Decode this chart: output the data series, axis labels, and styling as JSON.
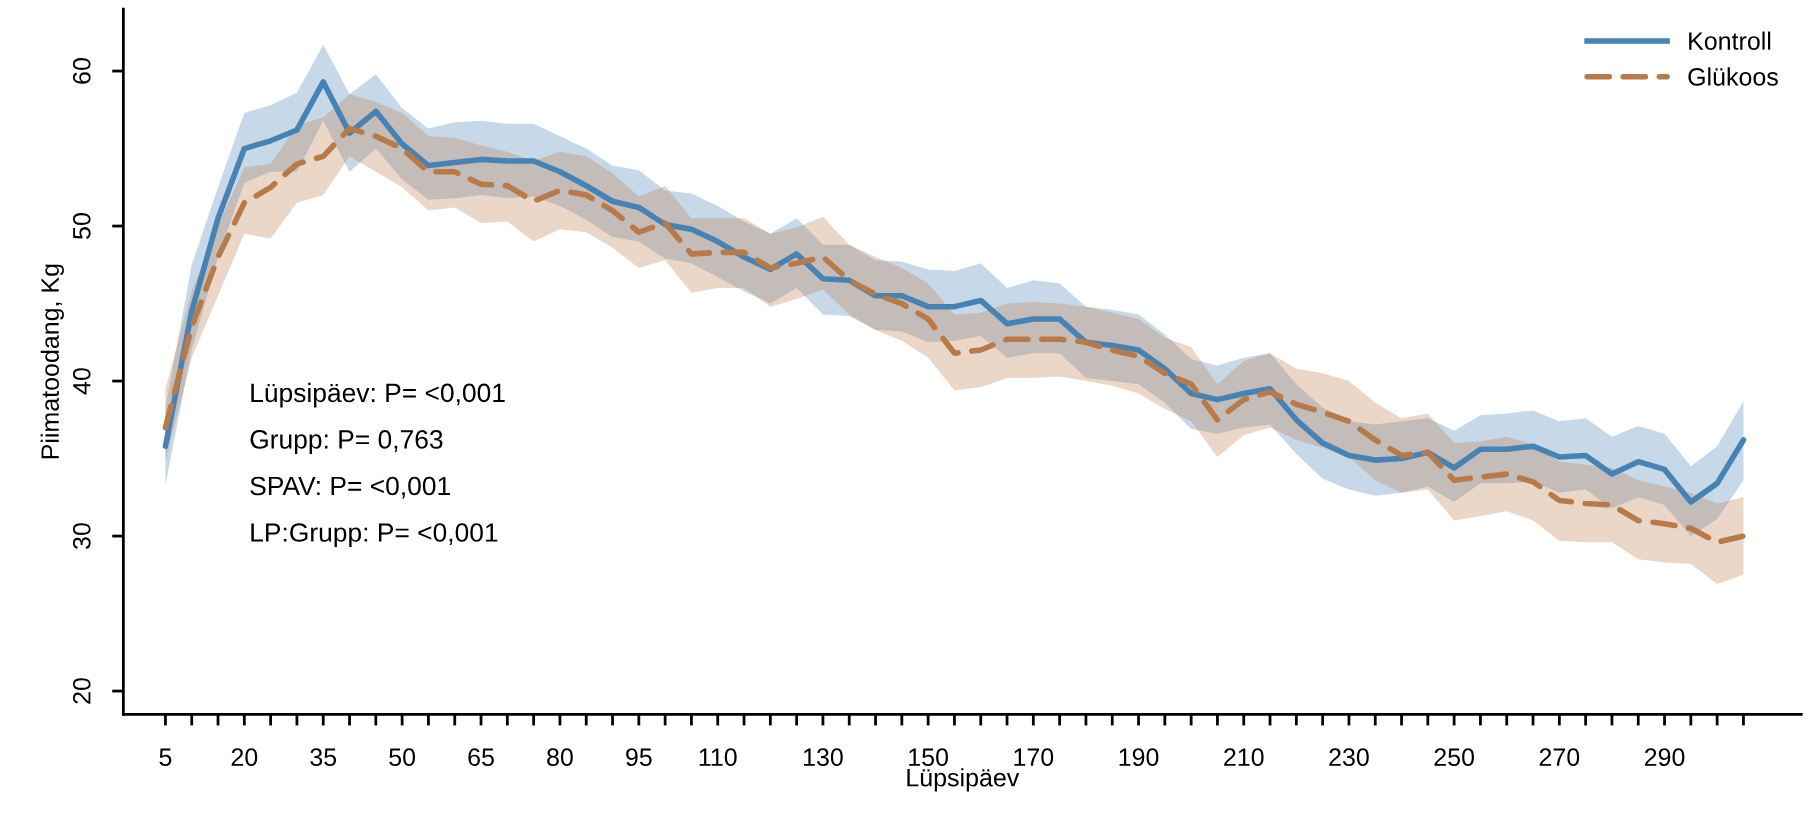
{
  "chart_data": {
    "type": "line",
    "xlabel": "Lüpsipäev",
    "ylabel": "Piimatoodang, Kg",
    "annotations": [
      "Lüpsipäev: P= <0,001",
      "Grupp: P= 0,763",
      "SPAV: P= <0,001",
      "LP:Grupp: P= <0,001"
    ],
    "x": [
      5,
      10,
      15,
      20,
      25,
      30,
      35,
      40,
      45,
      50,
      55,
      60,
      65,
      70,
      75,
      80,
      85,
      90,
      95,
      100,
      105,
      110,
      115,
      120,
      125,
      130,
      135,
      140,
      145,
      150,
      155,
      160,
      165,
      170,
      175,
      180,
      185,
      190,
      195,
      200,
      205,
      210,
      215,
      220,
      225,
      230,
      235,
      240,
      245,
      250,
      255,
      260,
      265,
      270,
      275,
      280,
      285,
      290,
      295,
      300,
      305
    ],
    "series": [
      {
        "name": "Kontroll",
        "color": "#4682b4",
        "line_style": "solid",
        "values": [
          35.8,
          44.5,
          50.5,
          55.0,
          55.5,
          56.2,
          59.3,
          56.0,
          57.4,
          55.3,
          53.9,
          54.1,
          54.3,
          54.2,
          54.2,
          53.5,
          52.6,
          51.6,
          51.2,
          50.1,
          49.8,
          49.0,
          48.0,
          47.2,
          48.2,
          46.6,
          46.5,
          45.5,
          45.5,
          44.8,
          44.8,
          45.2,
          43.7,
          44.0,
          44.0,
          42.5,
          42.3,
          42.0,
          40.8,
          39.2,
          38.8,
          39.2,
          39.5,
          37.5,
          36.0,
          35.2,
          34.9,
          35.0,
          35.4,
          34.4,
          35.6,
          35.6,
          35.8,
          35.1,
          35.2,
          34.0,
          34.8,
          34.3,
          32.2,
          33.4,
          36.2
        ],
        "lower": [
          33.3,
          42,
          48,
          52.8,
          53.5,
          53.5,
          56.8,
          53.5,
          55,
          53,
          51.7,
          51.8,
          52,
          51.8,
          51.9,
          51.3,
          50.4,
          49.3,
          49,
          47.9,
          47.6,
          46.7,
          45.8,
          45,
          46,
          44.3,
          44.2,
          43.3,
          43.2,
          42.5,
          42.6,
          42.9,
          41.5,
          41.8,
          41.8,
          40.2,
          40,
          39.8,
          38.6,
          36.9,
          36.6,
          37,
          37.2,
          35.3,
          33.7,
          33,
          32.6,
          32.8,
          33.2,
          32.2,
          33.4,
          33.4,
          33.5,
          32.8,
          33,
          31.8,
          32.5,
          32,
          30,
          31.1,
          33.6
        ],
        "upper": [
          38.3,
          47.5,
          52.5,
          57.3,
          57.8,
          58.6,
          61.7,
          58.5,
          59.8,
          57.6,
          56.3,
          56.7,
          56.8,
          56.6,
          56.6,
          55.8,
          55,
          53.9,
          53.6,
          52.3,
          52.1,
          51.3,
          50.3,
          49.5,
          50.5,
          48.8,
          48.8,
          47.8,
          47.7,
          47.2,
          47.1,
          47.6,
          46,
          46.5,
          46.3,
          44.8,
          44.6,
          44.3,
          43,
          41.4,
          41,
          41.5,
          41.8,
          39.8,
          38.3,
          37.4,
          37.2,
          37.4,
          37.6,
          36.8,
          37.8,
          37.9,
          38.1,
          37.4,
          37.6,
          36.4,
          37.1,
          36.6,
          34.5,
          35.8,
          38.7
        ]
      },
      {
        "name": "Glükoos",
        "color": "#b87a48",
        "line_style": "dashed",
        "values": [
          37.0,
          43.5,
          48.0,
          51.5,
          52.5,
          54.0,
          54.5,
          56.3,
          55.8,
          55.0,
          53.5,
          53.5,
          52.7,
          52.6,
          51.6,
          52.3,
          52.0,
          51.0,
          49.6,
          50.2,
          48.2,
          48.3,
          48.3,
          47.3,
          47.6,
          48.0,
          46.5,
          45.6,
          45.0,
          44.0,
          41.8,
          42.0,
          42.7,
          42.7,
          42.7,
          42.5,
          42.0,
          41.6,
          40.5,
          39.8,
          37.5,
          38.8,
          39.3,
          38.5,
          38.0,
          37.4,
          36.2,
          35.2,
          35.4,
          33.6,
          33.8,
          34.0,
          33.5,
          32.3,
          32.1,
          32.0,
          31.0,
          30.8,
          30.5,
          29.6,
          30.0
        ],
        "lower": [
          34.8,
          41.5,
          45.5,
          49.5,
          49.2,
          51.5,
          52,
          54.5,
          53.5,
          52.5,
          51,
          51.2,
          50.2,
          50.3,
          49,
          49.8,
          49.6,
          48.6,
          47.3,
          47.8,
          45.7,
          46,
          46,
          44.8,
          45.3,
          45.9,
          44.3,
          43.3,
          42.6,
          41.5,
          39.4,
          39.6,
          40.2,
          40.2,
          40.3,
          40,
          39.7,
          39.2,
          38.2,
          37.4,
          35.1,
          36.5,
          37,
          36.2,
          35.7,
          35.1,
          33.6,
          32.8,
          33,
          31,
          31.3,
          31.6,
          31,
          29.7,
          29.6,
          29.6,
          28.5,
          28.3,
          28.2,
          26.9,
          27.5
        ],
        "upper": [
          39.5,
          45.8,
          50,
          53.8,
          54,
          56.5,
          57,
          58.5,
          58,
          57.3,
          55.8,
          55.7,
          55.2,
          54.8,
          54.2,
          54.8,
          54.5,
          53.4,
          51.9,
          52.6,
          50.5,
          50.5,
          50.5,
          49.5,
          49.9,
          50.6,
          48.8,
          48,
          47.3,
          46.3,
          44.3,
          44.4,
          45,
          45.1,
          45,
          44.8,
          44.4,
          44,
          42.8,
          42.2,
          39.8,
          41.3,
          41.8,
          40.8,
          40.5,
          40,
          38.6,
          37.6,
          37.9,
          36,
          36.1,
          36.4,
          35.9,
          34.8,
          34.6,
          34.4,
          33.6,
          33.2,
          32.8,
          32.1,
          32.5
        ]
      }
    ],
    "xlim": [
      -3,
      316
    ],
    "ylim": [
      18.5,
      64
    ],
    "xticks": [
      5,
      {
        "value": 10,
        "label": null
      },
      {
        "value": 15,
        "label": null
      },
      20,
      {
        "value": 25,
        "label": null
      },
      {
        "value": 30,
        "label": null
      },
      35,
      {
        "value": 40,
        "label": null
      },
      {
        "value": 45,
        "label": null
      },
      50,
      {
        "value": 55,
        "label": null
      },
      {
        "value": 60,
        "label": null
      },
      65,
      {
        "value": 70,
        "label": null
      },
      {
        "value": 75,
        "label": null
      },
      80,
      {
        "value": 85,
        "label": null
      },
      {
        "value": 90,
        "label": null
      },
      95,
      {
        "value": 100,
        "label": null
      },
      {
        "value": 105,
        "label": null
      },
      110,
      {
        "value": 115,
        "label": null
      },
      {
        "value": 120,
        "label": null
      },
      {
        "value": 125,
        "label": null
      },
      130,
      {
        "value": 135,
        "label": null
      },
      {
        "value": 140,
        "label": null
      },
      {
        "value": 145,
        "label": null
      },
      150,
      {
        "value": 155,
        "label": null
      },
      {
        "value": 160,
        "label": null
      },
      {
        "value": 165,
        "label": null
      },
      170,
      {
        "value": 175,
        "label": null
      },
      {
        "value": 180,
        "label": null
      },
      {
        "value": 185,
        "label": null
      },
      190,
      {
        "value": 195,
        "label": null
      },
      {
        "value": 200,
        "label": null
      },
      {
        "value": 205,
        "label": null
      },
      210,
      {
        "value": 215,
        "label": null
      },
      {
        "value": 220,
        "label": null
      },
      {
        "value": 225,
        "label": null
      },
      230,
      {
        "value": 235,
        "label": null
      },
      {
        "value": 240,
        "label": null
      },
      {
        "value": 245,
        "label": null
      },
      250,
      {
        "value": 255,
        "label": null
      },
      {
        "value": 260,
        "label": null
      },
      {
        "value": 265,
        "label": null
      },
      270,
      {
        "value": 275,
        "label": null
      },
      {
        "value": 280,
        "label": null
      },
      {
        "value": 285,
        "label": null
      },
      290,
      {
        "value": 295,
        "label": null
      },
      {
        "value": 300,
        "label": null
      },
      {
        "value": 305,
        "label": null
      }
    ],
    "yticks": [
      20,
      30,
      40,
      50,
      60
    ],
    "grid": false,
    "legend": "top right",
    "marker": "none"
  }
}
